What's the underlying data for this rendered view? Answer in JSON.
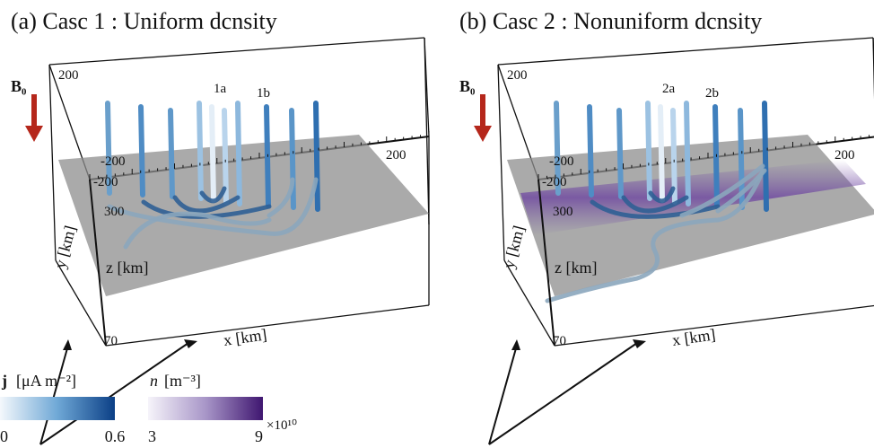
{
  "panels": [
    {
      "title": "(a) Casc 1 : Uniform dcnsity",
      "field": "B₀",
      "ticks": [
        "200",
        "-200",
        "-200",
        "200",
        "300",
        "70"
      ],
      "axis_labels": {
        "z": "z [km]",
        "y": "y [km]",
        "x": "x [km]"
      },
      "tube_labels": [
        "1a",
        "1b"
      ]
    },
    {
      "title": "(b) Casc 2 : Nonuniform dcnsity",
      "field": "B₀",
      "ticks": [
        "200",
        "-200",
        "-200",
        "200",
        "300",
        "70"
      ],
      "axis_labels": {
        "z": "z [km]",
        "y": "y [km]",
        "x": "x [km]"
      },
      "tube_labels": [
        "2a",
        "2b"
      ]
    }
  ],
  "colorbars": [
    {
      "symbol": "j",
      "unit": "[μA m⁻²]",
      "min": "0",
      "max": "0.6"
    },
    {
      "symbol": "n",
      "unit": "[m⁻³]",
      "min": "3",
      "max": "9",
      "multiplier": "×10¹⁰"
    }
  ]
}
